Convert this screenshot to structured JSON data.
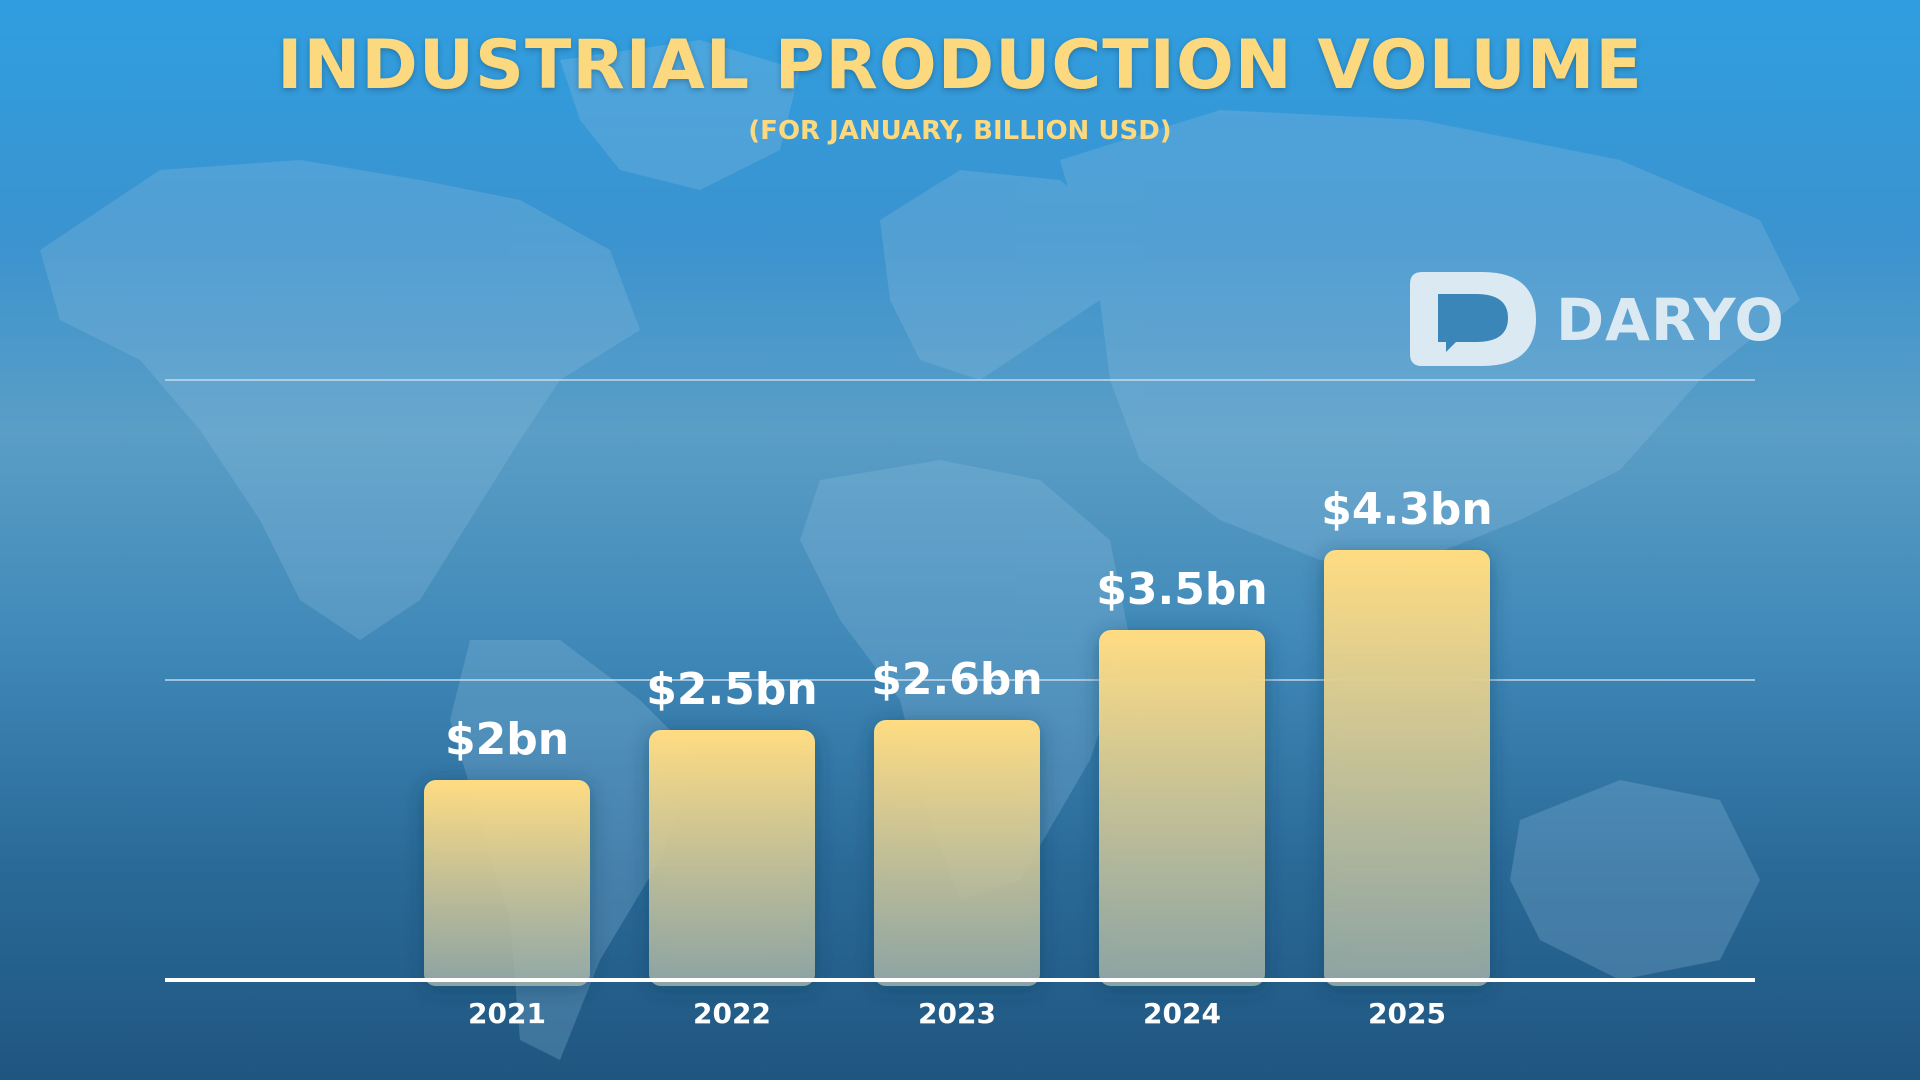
{
  "header": {
    "title": "INDUSTRIAL PRODUCTION VOLUME",
    "subtitle": "(FOR JANUARY, BILLION USD)"
  },
  "brand": {
    "name": "DARYO",
    "logo_icon": "speech-bubble-d-icon",
    "color": "#dbe9f3"
  },
  "colors": {
    "title": "#fcd97e",
    "bar_top": "#ffdc82",
    "bar_bottom": "#7f9aa6",
    "label": "#ffffff",
    "gridline": "#d7e6f0",
    "axis": "#ffffff"
  },
  "chart_data": {
    "type": "bar",
    "title": "INDUSTRIAL PRODUCTION VOLUME",
    "subtitle": "(FOR JANUARY, BILLION USD)",
    "xlabel": "",
    "ylabel": "",
    "categories": [
      "2021",
      "2022",
      "2023",
      "2024",
      "2025"
    ],
    "values": [
      2,
      2.5,
      2.6,
      3.5,
      4.3
    ],
    "data_labels": [
      "$2bn",
      "$2.5bn",
      "$2.6bn",
      "$3.5bn",
      "$4.3bn"
    ],
    "ylim": [
      0,
      6
    ],
    "gridlines": [
      3,
      6
    ],
    "grid": true,
    "legend": "none"
  }
}
